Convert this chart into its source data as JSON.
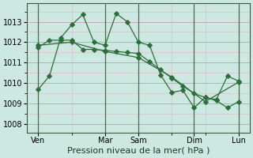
{
  "background_color": "#cce8e0",
  "grid_color_major": "#c8a8b8",
  "grid_color_minor": "#ddc0cc",
  "line_color": "#2d6e3a",
  "xlabel": "Pression niveau de la mer( hPa )",
  "ylim": [
    1007.6,
    1013.9
  ],
  "yticks": [
    1008,
    1009,
    1010,
    1011,
    1012,
    1013
  ],
  "xlim": [
    0,
    20
  ],
  "day_labels": [
    "Ven",
    "Mar",
    "Sam",
    "Dim",
    "Lun"
  ],
  "day_positions": [
    1,
    7,
    10,
    15,
    19
  ],
  "vline_positions": [
    1,
    7,
    10,
    15,
    19
  ],
  "line1_x": [
    1,
    2,
    3,
    4,
    5,
    6,
    7,
    8,
    9,
    10,
    11,
    12,
    13,
    14,
    15,
    16,
    17,
    18,
    19
  ],
  "line1_y": [
    1009.7,
    1010.35,
    1012.2,
    1012.85,
    1013.35,
    1012.0,
    1011.85,
    1013.4,
    1013.0,
    1012.0,
    1011.85,
    1010.4,
    1009.55,
    1009.65,
    1008.8,
    1009.3,
    1009.15,
    1008.8,
    1009.1
  ],
  "line2_x": [
    1,
    2,
    3,
    4,
    5,
    6,
    7,
    8,
    9,
    10,
    11,
    12,
    13,
    14,
    15,
    16,
    17,
    18,
    19
  ],
  "line2_y": [
    1011.75,
    1012.1,
    1012.1,
    1012.1,
    1011.65,
    1011.65,
    1011.6,
    1011.55,
    1011.5,
    1011.45,
    1011.05,
    1010.65,
    1010.25,
    1009.85,
    1009.5,
    1009.3,
    1009.2,
    1010.35,
    1010.1
  ],
  "line3_x": [
    1,
    4,
    7,
    10,
    13,
    16,
    19
  ],
  "line3_y": [
    1011.85,
    1012.0,
    1011.55,
    1011.25,
    1010.3,
    1009.1,
    1010.05
  ],
  "tick_fontsize": 7,
  "xlabel_fontsize": 8
}
